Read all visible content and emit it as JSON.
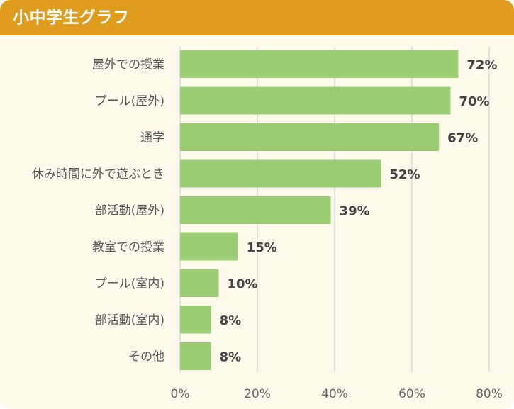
{
  "header": {
    "title": "小中学生グラフ"
  },
  "colors": {
    "header": "#e09c1c",
    "background": "#fdfaeb",
    "bar": "#9acd74",
    "grid": "#d9d9d9"
  },
  "chart_data": {
    "type": "bar",
    "orientation": "horizontal",
    "title": "小中学生グラフ",
    "categories": [
      "屋外での授業",
      "プール(屋外)",
      "通学",
      "休み時間に外で遊ぶとき",
      "部活動(屋外)",
      "教室での授業",
      "プール(室内)",
      "部活動(室内)",
      "その他"
    ],
    "values": [
      72,
      70,
      67,
      52,
      39,
      15,
      10,
      8,
      8
    ],
    "value_labels": [
      "72%",
      "70%",
      "67%",
      "52%",
      "39%",
      "15%",
      "10%",
      "8%",
      "8%"
    ],
    "xlim": [
      0,
      80
    ],
    "ticks": [
      0,
      20,
      40,
      60,
      80
    ],
    "tick_labels": [
      "0%",
      "20%",
      "40%",
      "60%",
      "80%"
    ],
    "xlabel": "",
    "ylabel": "",
    "grid": true,
    "legend": "none"
  }
}
